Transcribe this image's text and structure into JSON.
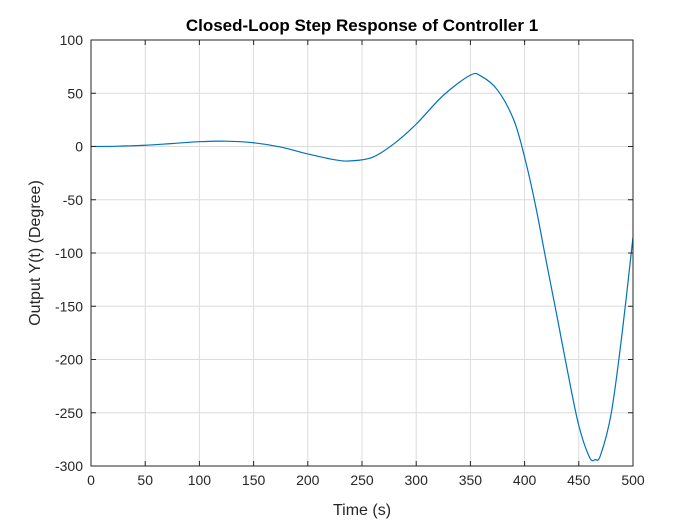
{
  "chart_data": {
    "type": "line",
    "title": "Closed-Loop Step Response of Controller 1",
    "xlabel": "Time (s)",
    "ylabel": "Output Y(t) (Degree)",
    "xlim": [
      0,
      500
    ],
    "ylim": [
      -300,
      100
    ],
    "xticks": [
      0,
      50,
      100,
      150,
      200,
      250,
      300,
      350,
      400,
      450,
      500
    ],
    "yticks": [
      100,
      50,
      0,
      -50,
      -100,
      -150,
      -200,
      -250,
      -300
    ],
    "grid": true,
    "box": true,
    "series": [
      {
        "color": "#0072bd",
        "x": [
          0,
          25,
          50,
          75,
          100,
          125,
          150,
          175,
          200,
          225,
          240,
          260,
          280,
          300,
          325,
          350,
          360,
          375,
          390,
          400,
          410,
          420,
          430,
          440,
          450,
          460,
          465,
          470,
          480,
          490,
          500
        ],
        "y": [
          0,
          0.3,
          1.2,
          2.8,
          4.5,
          5,
          3.5,
          -0.5,
          -7,
          -12.5,
          -13.5,
          -10,
          3,
          21,
          48,
          67,
          66,
          53,
          25,
          -10,
          -55,
          -108,
          -160,
          -213,
          -262,
          -292,
          -294,
          -290,
          -250,
          -175,
          -85
        ]
      }
    ]
  }
}
